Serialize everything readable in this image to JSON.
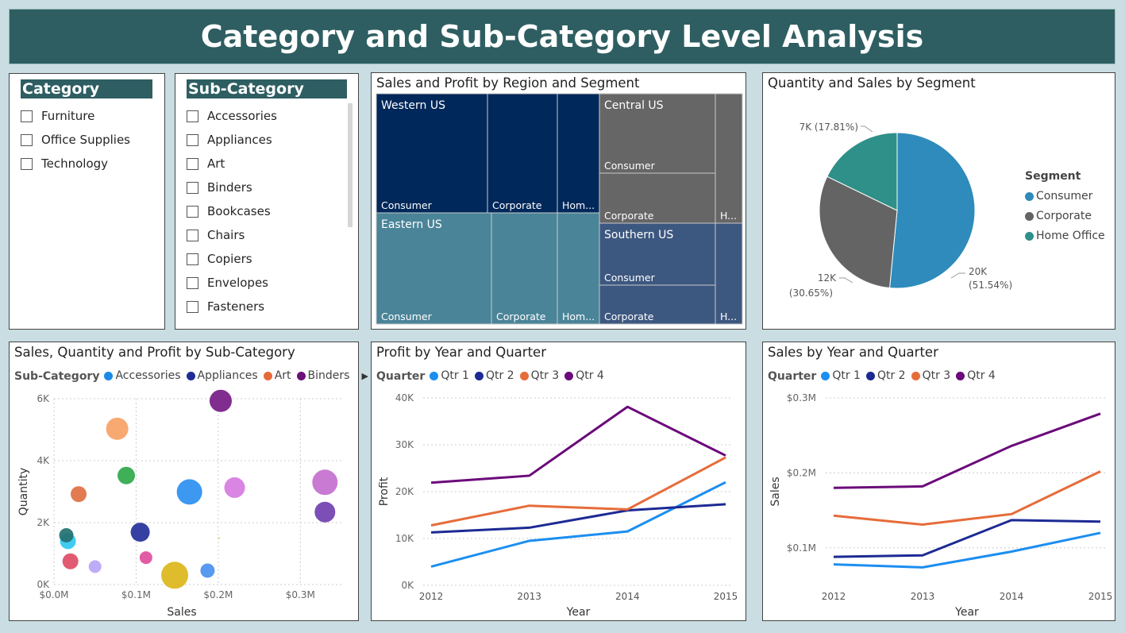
{
  "title": "Category and Sub-Category Level Analysis",
  "category_slicer": {
    "header": "Category",
    "items": [
      "Furniture",
      "Office Supplies",
      "Technology"
    ]
  },
  "subcategory_slicer": {
    "header": "Sub-Category",
    "items": [
      "Accessories",
      "Appliances",
      "Art",
      "Binders",
      "Bookcases",
      "Chairs",
      "Copiers",
      "Envelopes",
      "Fasteners"
    ]
  },
  "chart_data": [
    {
      "type": "treemap",
      "title": "Sales and Profit by Region and Segment",
      "regions": [
        {
          "name": "Western US",
          "color": "#00285a",
          "segments": [
            {
              "name": "Consumer",
              "label": "Consumer"
            },
            {
              "name": "Corporate",
              "label": "Corporate"
            },
            {
              "name": "Home Office",
              "label": "Hom..."
            }
          ]
        },
        {
          "name": "Eastern US",
          "color": "#4a8498",
          "segments": [
            {
              "name": "Consumer",
              "label": "Consumer"
            },
            {
              "name": "Corporate",
              "label": "Corporate"
            },
            {
              "name": "Home Office",
              "label": "Hom..."
            }
          ]
        },
        {
          "name": "Central US",
          "color": "#666666",
          "segments": [
            {
              "name": "Consumer",
              "label": "Consumer"
            },
            {
              "name": "Corporate",
              "label": "Corporate"
            },
            {
              "name": "Home Office",
              "label": "H..."
            }
          ]
        },
        {
          "name": "Southern US",
          "color": "#3d5880",
          "segments": [
            {
              "name": "Consumer",
              "label": "Consumer"
            },
            {
              "name": "Corporate",
              "label": "Corporate"
            },
            {
              "name": "Home Office",
              "label": "H..."
            }
          ]
        }
      ]
    },
    {
      "type": "pie",
      "title": "Quantity and Sales by Segment",
      "legend_title": "Segment",
      "slices": [
        {
          "name": "Consumer",
          "value": 51.54,
          "label": "20K",
          "pct": "(51.54%)",
          "color": "#2e8bbb"
        },
        {
          "name": "Corporate",
          "value": 30.65,
          "label": "12K",
          "pct": "(30.65%)",
          "color": "#646464"
        },
        {
          "name": "Home Office",
          "value": 17.81,
          "label": "7K (17.81%)",
          "pct": "",
          "color": "#2e9088"
        }
      ]
    },
    {
      "type": "scatter",
      "title": "Sales, Quantity and Profit by Sub-Category",
      "legend_title": "Sub-Category",
      "legend": [
        {
          "name": "Accessories",
          "color": "#1a8ae8"
        },
        {
          "name": "Appliances",
          "color": "#1f2c96"
        },
        {
          "name": "Art",
          "color": "#e66a38"
        },
        {
          "name": "Binders",
          "color": "#6b1078"
        }
      ],
      "xlabel": "Sales",
      "ylabel": "Quantity",
      "xlim": [
        0,
        0.35
      ],
      "ylim": [
        0,
        6000
      ],
      "xticks": [
        "$0.0M",
        "$0.1M",
        "$0.2M",
        "$0.3M"
      ],
      "yticks": [
        "0K",
        "2K",
        "4K",
        "6K"
      ],
      "points": [
        {
          "x": 0.203,
          "y": 5930,
          "r": 14,
          "color": "#761a85"
        },
        {
          "x": 0.077,
          "y": 5030,
          "r": 14,
          "color": "#f7a266"
        },
        {
          "x": 0.088,
          "y": 3520,
          "r": 11,
          "color": "#2fa84a"
        },
        {
          "x": 0.165,
          "y": 2990,
          "r": 16,
          "color": "#2b8ff0"
        },
        {
          "x": 0.22,
          "y": 3130,
          "r": 13,
          "color": "#d77ae2"
        },
        {
          "x": 0.33,
          "y": 3300,
          "r": 16,
          "color": "#c470cf"
        },
        {
          "x": 0.33,
          "y": 2340,
          "r": 13,
          "color": "#7040b0"
        },
        {
          "x": 0.03,
          "y": 2920,
          "r": 10,
          "color": "#e07043"
        },
        {
          "x": 0.105,
          "y": 1690,
          "r": 12,
          "color": "#24309a"
        },
        {
          "x": 0.017,
          "y": 1400,
          "r": 10,
          "color": "#2ec8f0"
        },
        {
          "x": 0.015,
          "y": 1590,
          "r": 9,
          "color": "#237070"
        },
        {
          "x": 0.02,
          "y": 750,
          "r": 10,
          "color": "#dd4d66"
        },
        {
          "x": 0.05,
          "y": 580,
          "r": 8,
          "color": "#b9a5f7"
        },
        {
          "x": 0.112,
          "y": 870,
          "r": 8,
          "color": "#e04e9c"
        },
        {
          "x": 0.147,
          "y": 300,
          "r": 17,
          "color": "#dbb61a"
        },
        {
          "x": 0.187,
          "y": 450,
          "r": 9,
          "color": "#4a90f0"
        },
        {
          "x": 0.201,
          "y": 1500,
          "r": 1,
          "color": "#d8c020"
        }
      ]
    },
    {
      "type": "line",
      "title": "Profit by Year and Quarter",
      "legend_title": "Quarter",
      "xlabel": "Year",
      "ylabel": "Profit",
      "x": [
        "2012",
        "2013",
        "2014",
        "2015"
      ],
      "ylim": [
        0,
        40000
      ],
      "yticks": [
        "0K",
        "10K",
        "20K",
        "30K",
        "40K"
      ],
      "series": [
        {
          "name": "Qtr 1",
          "color": "#1c8ef0",
          "values": [
            4000,
            9500,
            11500,
            22000
          ]
        },
        {
          "name": "Qtr 2",
          "color": "#1c2a94",
          "values": [
            11300,
            12300,
            16000,
            17300
          ]
        },
        {
          "name": "Qtr 3",
          "color": "#e66c3a",
          "values": [
            12800,
            17000,
            16200,
            27300
          ]
        },
        {
          "name": "Qtr 4",
          "color": "#6b0a7a",
          "values": [
            21900,
            23400,
            38100,
            27700
          ]
        }
      ]
    },
    {
      "type": "line",
      "title": "Sales by Year and Quarter",
      "legend_title": "Quarter",
      "xlabel": "Year",
      "ylabel": "Sales",
      "x": [
        "2012",
        "2013",
        "2014",
        "2015"
      ],
      "ylim": [
        0.05,
        0.3
      ],
      "yticks": [
        "$0.1M",
        "$0.2M",
        "$0.3M"
      ],
      "series": [
        {
          "name": "Qtr 1",
          "color": "#1c8ef0",
          "values": [
            0.078,
            0.074,
            0.095,
            0.12
          ]
        },
        {
          "name": "Qtr 2",
          "color": "#1c2a94",
          "values": [
            0.088,
            0.09,
            0.137,
            0.135
          ]
        },
        {
          "name": "Qtr 3",
          "color": "#e66c3a",
          "values": [
            0.143,
            0.131,
            0.145,
            0.202
          ]
        },
        {
          "name": "Qtr 4",
          "color": "#6b0a7a",
          "values": [
            0.18,
            0.182,
            0.236,
            0.279
          ]
        }
      ]
    }
  ]
}
